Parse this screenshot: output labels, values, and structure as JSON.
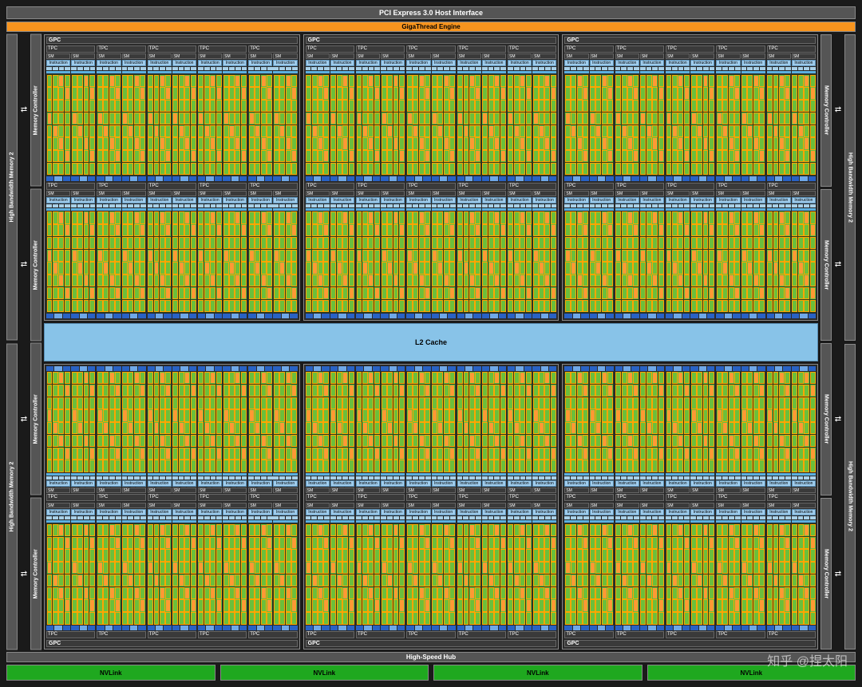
{
  "labels": {
    "pci": "PCI Express 3.0 Host Interface",
    "gigathread": "GigaThread Engine",
    "hbm": "High Bandwidth Memory 2",
    "memctrl": "Memory Controller",
    "gpc": "GPC",
    "tpc": "TPC",
    "sm": "SM",
    "icache": "Instruction Cache",
    "l2": "L2 Cache",
    "hsh": "High-Speed Hub",
    "nvlink": "NVLink",
    "arrow": "⇄",
    "watermark": "知乎 @捏太阳"
  },
  "layout": {
    "gpc_rows": 2,
    "gpc_per_row": 3,
    "tpc_per_gpc_half": 5,
    "sm_per_tpc": 2,
    "memctrl_per_side": 4,
    "hbm_per_side": 2,
    "nvlink_count": 4,
    "core_grid_cols": 4,
    "core_grid_rows": 8,
    "dispatch_units": 4
  },
  "colors": {
    "bg": "#1a1a1a",
    "block_bg": "#555555",
    "block_border": "#888888",
    "accent_orange": "#f7941e",
    "accent_blue_light": "#9fccec",
    "accent_blue_mid": "#88c3e8",
    "accent_blue_dark": "#2962c4",
    "core_green": "#6bbf3b",
    "core_orange": "#ff9933",
    "nvlink_green": "#1fa81f"
  }
}
